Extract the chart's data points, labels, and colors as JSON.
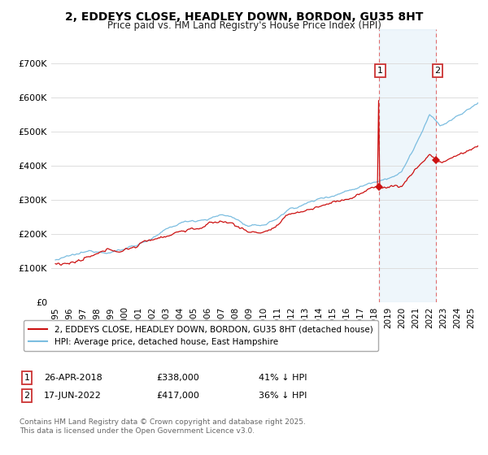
{
  "title": "2, EDDEYS CLOSE, HEADLEY DOWN, BORDON, GU35 8HT",
  "subtitle": "Price paid vs. HM Land Registry's House Price Index (HPI)",
  "ylim": [
    0,
    800000
  ],
  "yticks": [
    0,
    100000,
    200000,
    300000,
    400000,
    500000,
    600000,
    700000
  ],
  "ytick_labels": [
    "£0",
    "£100K",
    "£200K",
    "£300K",
    "£400K",
    "£500K",
    "£600K",
    "£700K"
  ],
  "hpi_color": "#7bbde0",
  "hpi_fill": "#d0e8f5",
  "sale_color": "#cc1111",
  "vline_color": "#e07070",
  "grid_color": "#dddddd",
  "background_color": "#ffffff",
  "sale1_year": 2018.32,
  "sale1_price": 338000,
  "sale1_label": "1",
  "sale2_year": 2022.46,
  "sale2_price": 417000,
  "sale2_label": "2",
  "legend_sale": "2, EDDEYS CLOSE, HEADLEY DOWN, BORDON, GU35 8HT (detached house)",
  "legend_hpi": "HPI: Average price, detached house, East Hampshire",
  "copyright": "Contains HM Land Registry data © Crown copyright and database right 2025.\nThis data is licensed under the Open Government Licence v3.0.",
  "xstart": 1995,
  "xend": 2025,
  "title_fontsize": 10,
  "subtitle_fontsize": 8.5,
  "tick_fontsize": 8,
  "legend_fontsize": 7.5
}
